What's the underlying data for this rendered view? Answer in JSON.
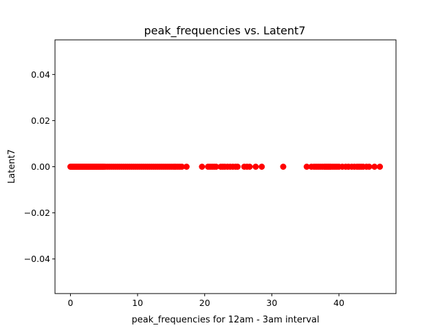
{
  "chart_data": {
    "type": "scatter",
    "title": "peak_frequencies vs. Latent7",
    "xlabel": "peak_frequencies for 12am - 3am interval",
    "ylabel": "Latent7",
    "xlim": [
      -2.3,
      48.5
    ],
    "ylim": [
      -0.055,
      0.055
    ],
    "x_ticks": [
      0,
      10,
      20,
      30,
      40
    ],
    "x_tick_labels": [
      "0",
      "10",
      "20",
      "30",
      "40"
    ],
    "y_ticks": [
      -0.04,
      -0.02,
      0.0,
      0.02,
      0.04
    ],
    "y_tick_labels": [
      "−0.04",
      "−0.02",
      "0.00",
      "0.02",
      "0.04"
    ],
    "grid": false,
    "marker_color": "#ff0000",
    "series": [
      {
        "x": [
          0.0,
          0.1,
          0.2,
          0.3,
          0.4,
          0.5,
          0.6,
          0.7,
          0.8,
          0.9,
          1.0,
          1.1,
          1.2,
          1.3,
          1.4,
          1.5,
          1.6,
          1.7,
          1.8,
          1.9,
          2.0,
          2.1,
          2.2,
          2.3,
          2.4,
          2.5,
          2.6,
          2.7,
          2.8,
          2.9,
          3.0,
          3.1,
          3.2,
          3.3,
          3.4,
          3.5,
          3.6,
          3.7,
          3.8,
          3.9,
          4.0,
          4.1,
          4.2,
          4.3,
          4.4,
          4.5,
          4.6,
          4.7,
          4.8,
          4.9,
          5.0,
          5.2,
          5.5,
          5.8,
          6.1,
          6.4,
          6.7,
          7.0,
          7.3,
          7.6,
          7.9,
          8.2,
          8.5,
          8.8,
          9.1,
          9.4,
          9.7,
          10.0,
          10.3,
          10.6,
          10.9,
          11.2,
          11.5,
          11.8,
          12.1,
          12.4,
          12.7,
          13.0,
          13.3,
          13.6,
          13.9,
          14.2,
          14.5,
          14.8,
          15.1,
          15.4,
          15.7,
          16.0,
          16.3,
          16.6,
          17.3,
          19.6,
          20.5,
          20.8,
          21.1,
          21.4,
          21.7,
          22.4,
          22.7,
          23.0,
          23.4,
          23.8,
          24.2,
          24.6,
          24.9,
          25.9,
          26.3,
          26.7,
          27.6,
          28.5,
          31.7,
          35.2,
          35.9,
          36.3,
          36.6,
          36.9,
          37.2,
          37.5,
          37.8,
          38.0,
          38.2,
          38.4,
          38.6,
          38.8,
          39.1,
          39.4,
          39.7,
          40.0,
          40.5,
          41.0,
          41.4,
          41.9,
          42.3,
          42.7,
          43.0,
          43.3,
          43.6,
          44.1,
          44.5,
          45.3,
          46.1
        ],
        "y": [
          0,
          0,
          0,
          0,
          0,
          0,
          0,
          0,
          0,
          0,
          0,
          0,
          0,
          0,
          0,
          0,
          0,
          0,
          0,
          0,
          0,
          0,
          0,
          0,
          0,
          0,
          0,
          0,
          0,
          0,
          0,
          0,
          0,
          0,
          0,
          0,
          0,
          0,
          0,
          0,
          0,
          0,
          0,
          0,
          0,
          0,
          0,
          0,
          0,
          0,
          0,
          0,
          0,
          0,
          0,
          0,
          0,
          0,
          0,
          0,
          0,
          0,
          0,
          0,
          0,
          0,
          0,
          0,
          0,
          0,
          0,
          0,
          0,
          0,
          0,
          0,
          0,
          0,
          0,
          0,
          0,
          0,
          0,
          0,
          0,
          0,
          0,
          0,
          0,
          0,
          0,
          0,
          0,
          0,
          0,
          0,
          0,
          0,
          0,
          0,
          0,
          0,
          0,
          0,
          0,
          0,
          0,
          0,
          0,
          0,
          0,
          0,
          0,
          0,
          0,
          0,
          0,
          0,
          0,
          0,
          0,
          0,
          0,
          0,
          0,
          0,
          0,
          0,
          0,
          0,
          0,
          0,
          0,
          0,
          0,
          0,
          0,
          0,
          0,
          0,
          0
        ]
      }
    ]
  }
}
